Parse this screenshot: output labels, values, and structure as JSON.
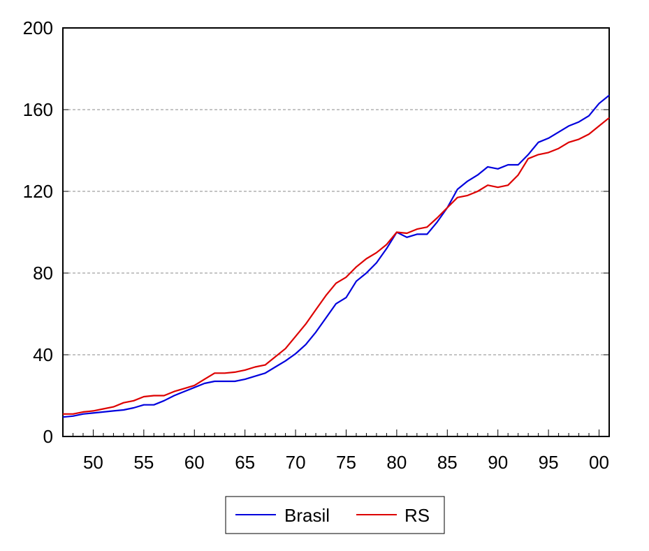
{
  "chart_data": {
    "type": "line",
    "title": "",
    "xlabel": "",
    "ylabel": "",
    "x": [
      1947,
      1948,
      1949,
      1950,
      1951,
      1952,
      1953,
      1954,
      1955,
      1956,
      1957,
      1958,
      1959,
      1960,
      1961,
      1962,
      1963,
      1964,
      1965,
      1966,
      1967,
      1968,
      1969,
      1970,
      1971,
      1972,
      1973,
      1974,
      1975,
      1976,
      1977,
      1978,
      1979,
      1980,
      1981,
      1982,
      1983,
      1984,
      1985,
      1986,
      1987,
      1988,
      1989,
      1990,
      1991,
      1992,
      1993,
      1994,
      1995,
      1996,
      1997,
      1998,
      1999,
      2000,
      2001
    ],
    "xlim": [
      1947,
      2001
    ],
    "ylim": [
      0,
      200
    ],
    "yticks": [
      0,
      40,
      80,
      120,
      160,
      200
    ],
    "ytick_labels": [
      "0",
      "40",
      "80",
      "120",
      "160",
      "200"
    ],
    "xticks": [
      1950,
      1955,
      1960,
      1965,
      1970,
      1975,
      1980,
      1985,
      1990,
      1995,
      2000
    ],
    "xtick_labels": [
      "50",
      "55",
      "60",
      "65",
      "70",
      "75",
      "80",
      "85",
      "90",
      "95",
      "00"
    ],
    "grid": "horizontal dashed",
    "legend_position": "bottom-center",
    "series": [
      {
        "name": "Brasil",
        "color": "#0000dd",
        "values": [
          9.5,
          10,
          11,
          11.5,
          12,
          12.5,
          13,
          14,
          15.5,
          15.5,
          17.5,
          20,
          22,
          24,
          26,
          27,
          27,
          27,
          28,
          29.5,
          31,
          34,
          37,
          40.5,
          45,
          51,
          58,
          65,
          68,
          76,
          80,
          85,
          92,
          100,
          97.5,
          99,
          99,
          105,
          112,
          121,
          125,
          128,
          132,
          131,
          133,
          133,
          138,
          144,
          146,
          149,
          152,
          154,
          157,
          163,
          167
        ]
      },
      {
        "name": "RS",
        "color": "#dd0000",
        "values": [
          11,
          11,
          12,
          12.5,
          13.5,
          14.5,
          16.5,
          17.5,
          19.5,
          20,
          20,
          22,
          23.5,
          25,
          28,
          31,
          31,
          31.5,
          32.5,
          34,
          35,
          39,
          43,
          49,
          55,
          62,
          69,
          75,
          78,
          83,
          87,
          90,
          94,
          100,
          99.5,
          101.5,
          102.5,
          107,
          112,
          117,
          118,
          120,
          123,
          122,
          123,
          128,
          136,
          138,
          139,
          141,
          144,
          145.5,
          148,
          152,
          156
        ]
      }
    ]
  }
}
